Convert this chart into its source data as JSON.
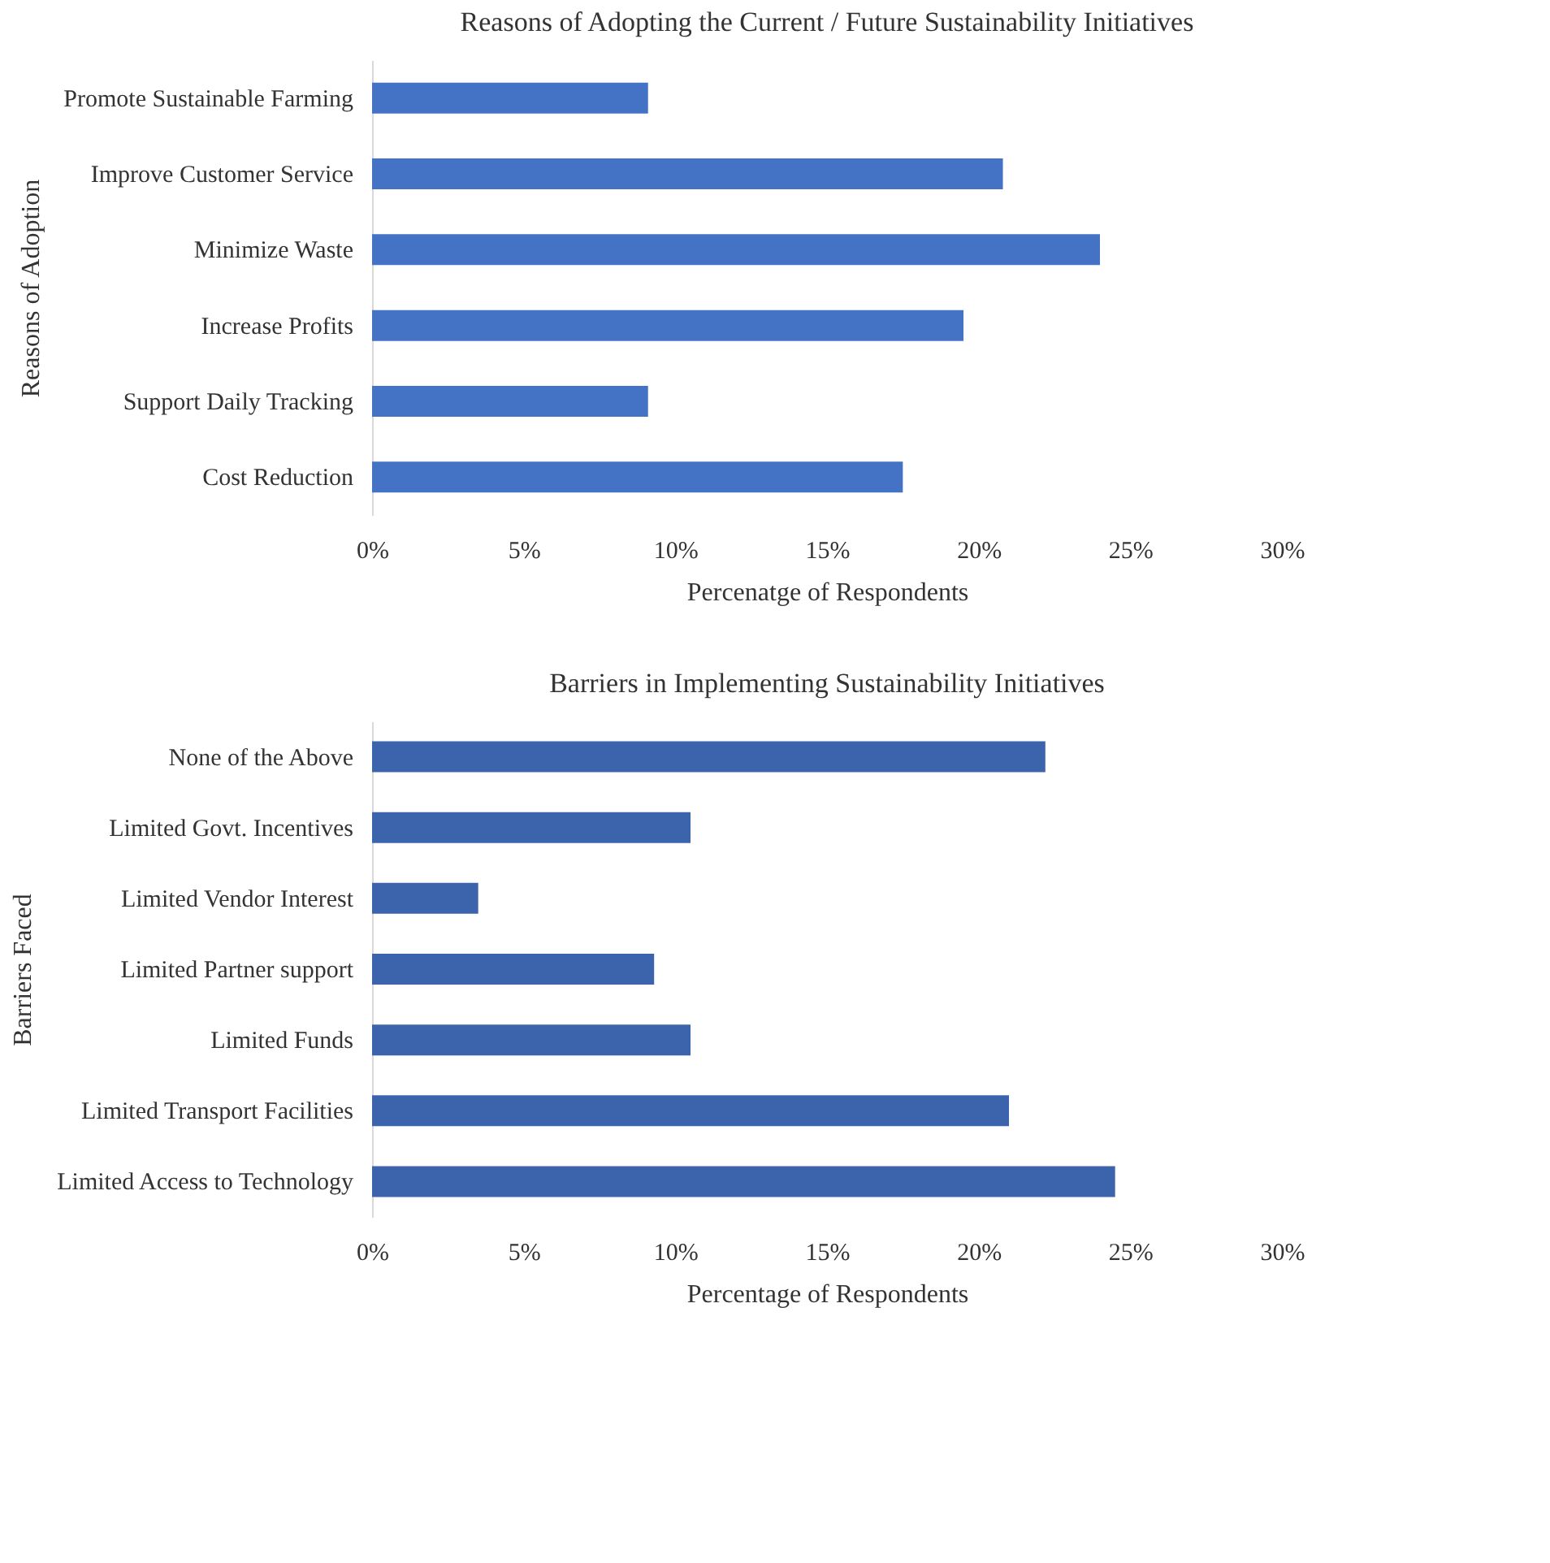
{
  "chart_data": [
    {
      "type": "bar",
      "orientation": "horizontal",
      "title": "Reasons of Adopting the Current / Future Sustainability Initiatives",
      "xlabel": "Percenatge of Respondents",
      "ylabel": "Reasons of Adoption",
      "categories": [
        "Promote Sustainable Farming",
        "Improve Customer Service",
        "Minimize Waste ",
        "Increase Profits",
        "Support Daily Tracking",
        "Cost Reduction"
      ],
      "values": [
        9.1,
        20.8,
        24.0,
        19.5,
        9.1,
        17.5
      ],
      "color": "#4472c4",
      "xlim": [
        0,
        30
      ],
      "xticks": [
        {
          "value": 0,
          "label": "0%"
        },
        {
          "value": 5,
          "label": "5%"
        },
        {
          "value": 10,
          "label": "10%"
        },
        {
          "value": 15,
          "label": "15%"
        },
        {
          "value": 20,
          "label": "20%"
        },
        {
          "value": 25,
          "label": "25%"
        },
        {
          "value": 30,
          "label": "30%"
        }
      ],
      "grid": false
    },
    {
      "type": "bar",
      "orientation": "horizontal",
      "title": "Barriers in Implementing Sustainability Initiatives",
      "xlabel": "Percentage of Respondents",
      "ylabel": "Barriers Faced",
      "categories": [
        "None of the Above",
        "Limited Govt. Incentives",
        "Limited Vendor Interest",
        "Limited Partner support",
        "Limited Funds",
        "Limited Transport Facilities",
        "Limited Access to Technology"
      ],
      "values": [
        22.2,
        10.5,
        3.5,
        9.3,
        10.5,
        21.0,
        24.5
      ],
      "color": "#3c64ac",
      "xlim": [
        0,
        30
      ],
      "xticks": [
        {
          "value": 0,
          "label": "0%"
        },
        {
          "value": 5,
          "label": "5%"
        },
        {
          "value": 10,
          "label": "10%"
        },
        {
          "value": 15,
          "label": "15%"
        },
        {
          "value": 20,
          "label": "20%"
        },
        {
          "value": 25,
          "label": "25%"
        },
        {
          "value": 30,
          "label": "30%"
        }
      ],
      "grid": false
    }
  ]
}
